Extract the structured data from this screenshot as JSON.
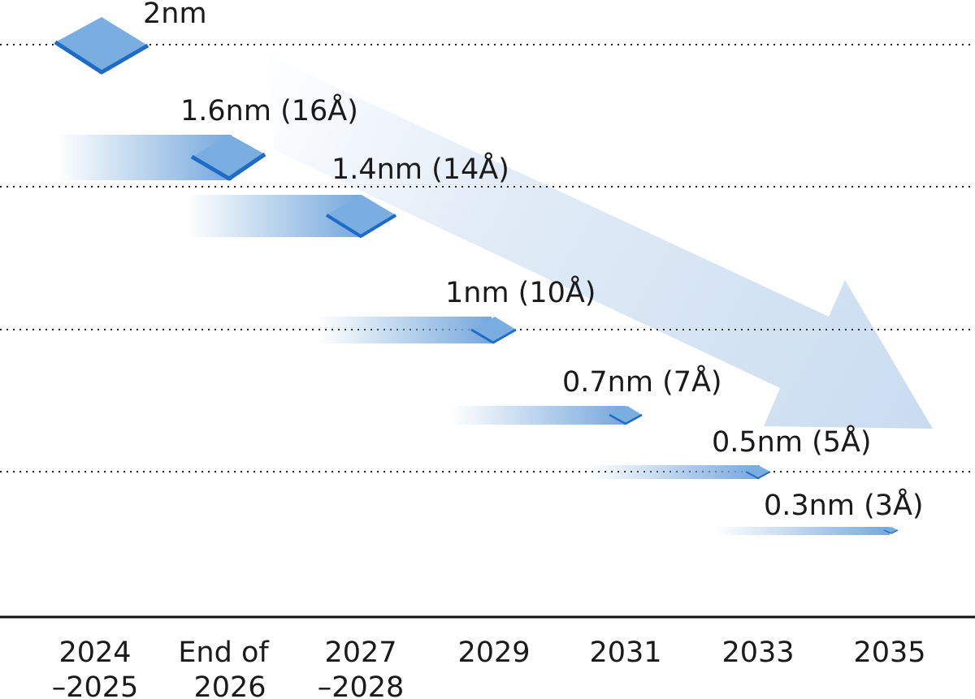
{
  "chart_data": {
    "type": "roadmap",
    "nodes": [
      {
        "name": "2nm",
        "label": "2nm",
        "year": "2024–2025"
      },
      {
        "name": "1.6nm",
        "label": "1.6nm (16Å)",
        "year": "End of 2026"
      },
      {
        "name": "1.4nm",
        "label": "1.4nm (14Å)",
        "year": "2027–2028"
      },
      {
        "name": "1nm",
        "label": "1nm (10Å)",
        "year": "2029"
      },
      {
        "name": "0.7nm",
        "label": "0.7nm (7Å)",
        "year": "2031"
      },
      {
        "name": "0.5nm",
        "label": "0.5nm (5Å)",
        "year": "2033"
      },
      {
        "name": "0.3nm",
        "label": "0.3nm (3Å)",
        "year": "2035"
      }
    ],
    "x_axis": [
      {
        "line1": "2024",
        "line2": "–2025"
      },
      {
        "line1": "End of",
        "line2": "2026"
      },
      {
        "line1": "2027",
        "line2": "–2028"
      },
      {
        "line1": "2029",
        "line2": ""
      },
      {
        "line1": "2031",
        "line2": ""
      },
      {
        "line1": "2033",
        "line2": ""
      },
      {
        "line1": "2035",
        "line2": ""
      }
    ],
    "colors": {
      "chip_top": "#7aaee0",
      "chip_edge": "#1f6cc8",
      "trail": "#6fa3da",
      "arrow": "#c9dcf0",
      "gridline": "#222222",
      "axis": "#111111"
    }
  }
}
